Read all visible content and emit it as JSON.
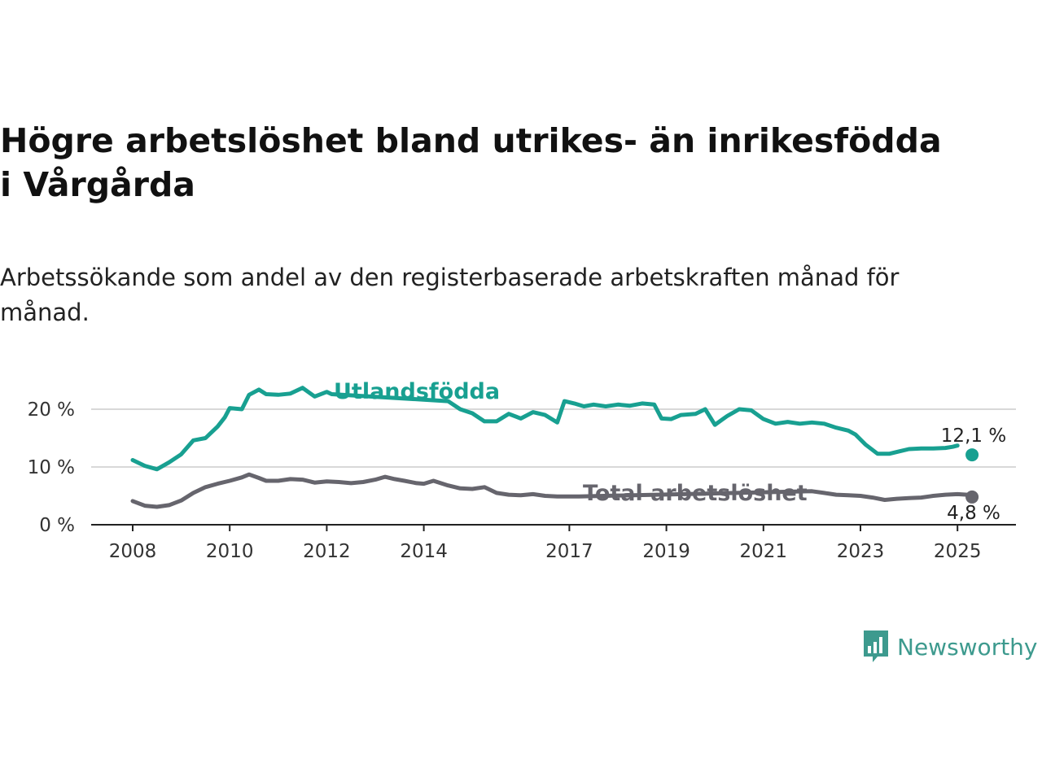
{
  "title": "Högre arbetslöshet bland utrikes- än inrikesfödda i Vårgårda",
  "subtitle": "Arbetssökande som andel av den registerbaserade arbetskraften månad för månad.",
  "logo": {
    "text": "Newsworthy",
    "icon": "bar-chart-speech-bubble-icon",
    "color": "#3d9a8e"
  },
  "chart_data": {
    "type": "line",
    "y_ticks": [
      {
        "value": 0,
        "label": "0 %"
      },
      {
        "value": 10,
        "label": "10 %"
      },
      {
        "value": 20,
        "label": "20 %"
      }
    ],
    "x_ticks": [
      {
        "value": 2008,
        "label": "2008"
      },
      {
        "value": 2010,
        "label": "2010"
      },
      {
        "value": 2012,
        "label": "2012"
      },
      {
        "value": 2014,
        "label": "2014"
      },
      {
        "value": 2017,
        "label": "2017"
      },
      {
        "value": 2019,
        "label": "2019"
      },
      {
        "value": 2021,
        "label": "2021"
      },
      {
        "value": 2023,
        "label": "2023"
      },
      {
        "value": 2025,
        "label": "2025"
      }
    ],
    "xlim": [
      2007.2,
      2026.2
    ],
    "ylim": [
      0,
      24.5
    ],
    "grid": true,
    "series": [
      {
        "name": "Utlandsfödda",
        "color": "#18a091",
        "end_label": "12,1 %",
        "points": [
          [
            2008.0,
            11.2
          ],
          [
            2008.25,
            10.2
          ],
          [
            2008.5,
            9.6
          ],
          [
            2008.75,
            10.8
          ],
          [
            2009.0,
            12.2
          ],
          [
            2009.25,
            14.6
          ],
          [
            2009.5,
            15.0
          ],
          [
            2009.75,
            17.0
          ],
          [
            2009.9,
            18.6
          ],
          [
            2010.0,
            20.2
          ],
          [
            2010.25,
            20.0
          ],
          [
            2010.4,
            22.5
          ],
          [
            2010.6,
            23.4
          ],
          [
            2010.75,
            22.6
          ],
          [
            2011.0,
            22.5
          ],
          [
            2011.25,
            22.7
          ],
          [
            2011.5,
            23.7
          ],
          [
            2011.75,
            22.2
          ],
          [
            2012.0,
            23.0
          ],
          [
            2012.1,
            22.6
          ],
          [
            2014.5,
            21.4
          ],
          [
            2014.75,
            20.0
          ],
          [
            2015.0,
            19.3
          ],
          [
            2015.25,
            17.9
          ],
          [
            2015.5,
            17.9
          ],
          [
            2015.75,
            19.2
          ],
          [
            2016.0,
            18.4
          ],
          [
            2016.25,
            19.5
          ],
          [
            2016.5,
            19.0
          ],
          [
            2016.75,
            17.7
          ],
          [
            2016.9,
            21.4
          ],
          [
            2017.1,
            21.0
          ],
          [
            2017.3,
            20.5
          ],
          [
            2017.5,
            20.8
          ],
          [
            2017.75,
            20.5
          ],
          [
            2018.0,
            20.8
          ],
          [
            2018.25,
            20.6
          ],
          [
            2018.5,
            21.0
          ],
          [
            2018.75,
            20.8
          ],
          [
            2018.9,
            18.4
          ],
          [
            2019.1,
            18.3
          ],
          [
            2019.3,
            19.0
          ],
          [
            2019.6,
            19.2
          ],
          [
            2019.8,
            20.0
          ],
          [
            2020.0,
            17.3
          ],
          [
            2020.25,
            18.8
          ],
          [
            2020.5,
            20.0
          ],
          [
            2020.75,
            19.8
          ],
          [
            2021.0,
            18.3
          ],
          [
            2021.25,
            17.5
          ],
          [
            2021.5,
            17.8
          ],
          [
            2021.75,
            17.5
          ],
          [
            2022.0,
            17.7
          ],
          [
            2022.25,
            17.5
          ],
          [
            2022.5,
            16.8
          ],
          [
            2022.75,
            16.3
          ],
          [
            2022.9,
            15.6
          ],
          [
            2023.1,
            13.9
          ],
          [
            2023.35,
            12.3
          ],
          [
            2023.6,
            12.3
          ],
          [
            2023.8,
            12.7
          ],
          [
            2024.0,
            13.1
          ],
          [
            2024.25,
            13.2
          ],
          [
            2024.5,
            13.2
          ],
          [
            2024.75,
            13.3
          ],
          [
            2024.9,
            13.5
          ],
          [
            2025.0,
            13.7
          ]
        ],
        "last_point": [
          2025.3,
          12.1
        ]
      },
      {
        "name": "Total arbetslöshet",
        "color": "#66656d",
        "end_label": "4,8 %",
        "points": [
          [
            2008.0,
            4.1
          ],
          [
            2008.25,
            3.3
          ],
          [
            2008.5,
            3.1
          ],
          [
            2008.75,
            3.4
          ],
          [
            2009.0,
            4.2
          ],
          [
            2009.25,
            5.5
          ],
          [
            2009.5,
            6.5
          ],
          [
            2009.75,
            7.1
          ],
          [
            2010.0,
            7.6
          ],
          [
            2010.25,
            8.2
          ],
          [
            2010.4,
            8.7
          ],
          [
            2010.6,
            8.1
          ],
          [
            2010.75,
            7.6
          ],
          [
            2011.0,
            7.6
          ],
          [
            2011.25,
            7.9
          ],
          [
            2011.5,
            7.8
          ],
          [
            2011.75,
            7.3
          ],
          [
            2012.0,
            7.5
          ],
          [
            2012.25,
            7.4
          ],
          [
            2012.5,
            7.2
          ],
          [
            2012.75,
            7.4
          ],
          [
            2013.0,
            7.8
          ],
          [
            2013.2,
            8.3
          ],
          [
            2013.4,
            7.9
          ],
          [
            2013.6,
            7.6
          ],
          [
            2013.85,
            7.2
          ],
          [
            2014.0,
            7.1
          ],
          [
            2014.2,
            7.6
          ],
          [
            2014.5,
            6.8
          ],
          [
            2014.75,
            6.3
          ],
          [
            2015.0,
            6.2
          ],
          [
            2015.25,
            6.5
          ],
          [
            2015.5,
            5.5
          ],
          [
            2015.75,
            5.2
          ],
          [
            2016.0,
            5.1
          ],
          [
            2016.25,
            5.3
          ],
          [
            2016.5,
            5.0
          ],
          [
            2016.75,
            4.9
          ],
          [
            2017.0,
            4.9
          ],
          [
            2017.2,
            4.9
          ],
          [
            2022.0,
            5.8
          ],
          [
            2022.25,
            5.5
          ],
          [
            2022.5,
            5.2
          ],
          [
            2022.75,
            5.1
          ],
          [
            2023.0,
            5.0
          ],
          [
            2023.25,
            4.7
          ],
          [
            2023.5,
            4.3
          ],
          [
            2023.75,
            4.5
          ],
          [
            2024.0,
            4.6
          ],
          [
            2024.25,
            4.7
          ],
          [
            2024.5,
            5.0
          ],
          [
            2024.75,
            5.2
          ],
          [
            2025.0,
            5.3
          ],
          [
            2025.2,
            5.2
          ]
        ],
        "last_point": [
          2025.3,
          4.8
        ]
      }
    ]
  }
}
